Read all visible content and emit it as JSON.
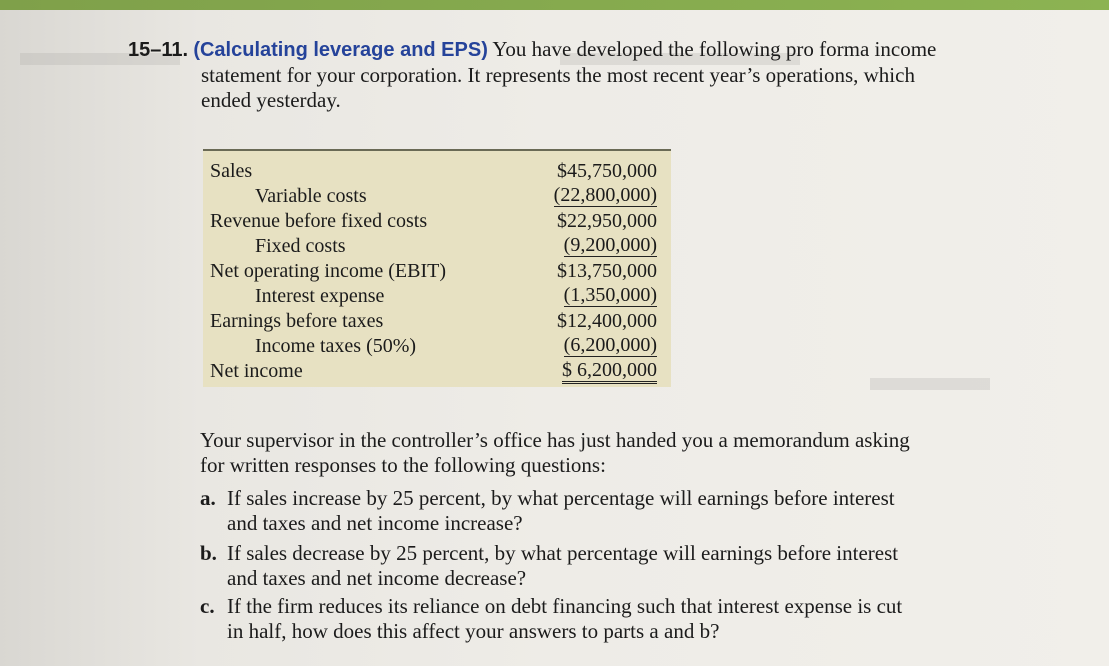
{
  "problem": {
    "number": "15–11.",
    "topic": "(Calculating leverage and EPS)",
    "intro": "You have developed the following pro forma income",
    "intro_line2": "statement for your corporation. It represents the most recent year’s operations, which",
    "intro_line3": "ended yesterday."
  },
  "income_statement": [
    {
      "label": "Sales",
      "amount": "$45,750,000",
      "indent": false,
      "rule": "none"
    },
    {
      "label": "Variable costs",
      "amount": "(22,800,000)",
      "indent": true,
      "rule": "single"
    },
    {
      "label": "Revenue before fixed costs",
      "amount": "$22,950,000",
      "indent": false,
      "rule": "none"
    },
    {
      "label": "Fixed costs",
      "amount": "(9,200,000)",
      "indent": true,
      "rule": "single"
    },
    {
      "label": "Net operating income (EBIT)",
      "amount": "$13,750,000",
      "indent": false,
      "rule": "none"
    },
    {
      "label": "Interest expense",
      "amount": "(1,350,000)",
      "indent": true,
      "rule": "single"
    },
    {
      "label": "Earnings before taxes",
      "amount": "$12,400,000",
      "indent": false,
      "rule": "none"
    },
    {
      "label": "Income taxes (50%)",
      "amount": "(6,200,000)",
      "indent": true,
      "rule": "single"
    },
    {
      "label": "Net income",
      "amount": "$ 6,200,000",
      "indent": false,
      "rule": "double"
    }
  ],
  "memo": {
    "line1": "Your supervisor in the controller’s office has just handed you a memorandum asking",
    "line2": "for written responses to the following questions:"
  },
  "questions": [
    {
      "letter": "a.",
      "line1": "If sales increase by 25 percent, by what percentage will earnings before interest",
      "line2": "and taxes and net income increase?"
    },
    {
      "letter": "b.",
      "line1": "If sales decrease by 25 percent, by what percentage will earnings before interest",
      "line2": "and taxes and net income decrease?"
    },
    {
      "letter": "c.",
      "line1": "If the firm reduces its reliance on debt financing such that interest expense is cut",
      "line2": "in half, how does this affect your answers to parts a and b?"
    }
  ]
}
